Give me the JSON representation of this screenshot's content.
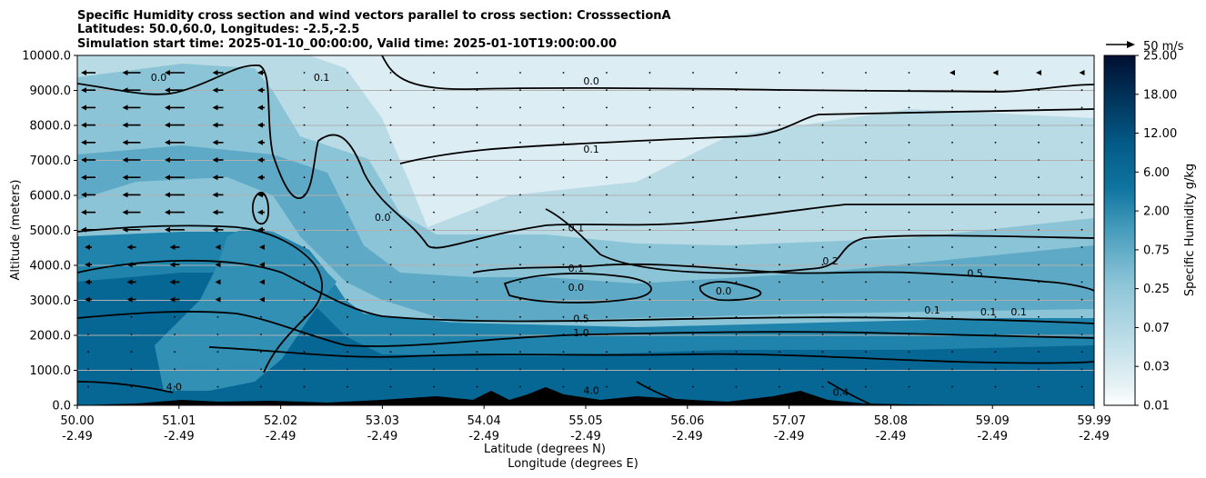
{
  "chart_data": {
    "type": "contourf",
    "title_lines": [
      "Specific Humidity cross section and wind vectors parallel to cross section: CrosssectionA",
      "Latitudes: 50.0,60.0, Longitudes: -2.5,-2.5",
      "Simulation start time: 2025-01-10_00:00:00, Valid time: 2025-01-10T19:00:00.00"
    ],
    "ylabel": "Altitude (meters)",
    "xlabel_lines": [
      "Latitude (degrees N)",
      "Longitude (degrees E)"
    ],
    "x_ticks": [
      {
        "lat": "50.00",
        "lon": "-2.49"
      },
      {
        "lat": "51.01",
        "lon": "-2.49"
      },
      {
        "lat": "52.02",
        "lon": "-2.49"
      },
      {
        "lat": "53.03",
        "lon": "-2.49"
      },
      {
        "lat": "54.04",
        "lon": "-2.49"
      },
      {
        "lat": "55.05",
        "lon": "-2.49"
      },
      {
        "lat": "56.06",
        "lon": "-2.49"
      },
      {
        "lat": "57.07",
        "lon": "-2.49"
      },
      {
        "lat": "58.08",
        "lon": "-2.49"
      },
      {
        "lat": "59.09",
        "lon": "-2.49"
      },
      {
        "lat": "59.99",
        "lon": "-2.49"
      }
    ],
    "y_ticks": [
      "0.0",
      "1000.0",
      "2000.0",
      "3000.0",
      "4000.0",
      "5000.0",
      "6000.0",
      "7000.0",
      "8000.0",
      "9000.0",
      "10000.0"
    ],
    "ylim": [
      0,
      10000
    ],
    "xlim": [
      50.0,
      59.99
    ],
    "grid": "horizontal",
    "colorbar": {
      "label": "Specific Humidity g/kg",
      "tick_labels": [
        "0.01",
        "0.03",
        "0.07",
        "0.25",
        "0.75",
        "2.00",
        "6.00",
        "12.00",
        "18.00",
        "25.00"
      ],
      "cmap": "PuBu-like (white to navy)",
      "colors": [
        "#ffffff",
        "#e3f0f4",
        "#cfe6ed",
        "#b9dbe6",
        "#a2d0df",
        "#8cc4d7",
        "#75b8cf",
        "#5eaac6",
        "#479dbd",
        "#3190b4",
        "#1f83ab",
        "#0f75a0",
        "#066794",
        "#035a86",
        "#024d78",
        "#023f69",
        "#01335a",
        "#01284b",
        "#011c3d",
        "#010f31"
      ]
    },
    "quiver_key": {
      "label": "50 m/s"
    },
    "contour_labels": [
      {
        "text": "0.0",
        "lat": 55.05,
        "alt": 9200
      },
      {
        "text": "0.1",
        "lat": 55.05,
        "alt": 7250
      },
      {
        "text": "0.1",
        "lat": 52.4,
        "alt": 9300
      },
      {
        "text": "0.0",
        "lat": 50.8,
        "alt": 9300
      },
      {
        "text": "0.0",
        "lat": 53.0,
        "alt": 5300
      },
      {
        "text": "0.1",
        "lat": 54.9,
        "alt": 5000
      },
      {
        "text": "0.1",
        "lat": 54.9,
        "alt": 3850
      },
      {
        "text": "0.0",
        "lat": 54.9,
        "alt": 3300
      },
      {
        "text": "0.0",
        "lat": 56.35,
        "alt": 3200
      },
      {
        "text": "0.5",
        "lat": 54.95,
        "alt": 2400
      },
      {
        "text": "1.0",
        "lat": 54.95,
        "alt": 2000
      },
      {
        "text": "0.2",
        "lat": 57.4,
        "alt": 4050
      },
      {
        "text": "0.5",
        "lat": 58.82,
        "alt": 3700
      },
      {
        "text": "0.1",
        "lat": 58.4,
        "alt": 2650
      },
      {
        "text": "0.1",
        "lat": 58.95,
        "alt": 2600
      },
      {
        "text": "0.1",
        "lat": 59.25,
        "alt": 2600
      },
      {
        "text": "4.0",
        "lat": 50.95,
        "alt": 450
      },
      {
        "text": "4.0",
        "lat": 55.05,
        "alt": 350
      },
      {
        "text": "0.4",
        "lat": 57.5,
        "alt": 300
      }
    ],
    "wind_vectors_note": "Leftward wind vectors up to ~25 m/s near 50.5-51.4N above 3000 m; near-zero elsewhere"
  }
}
